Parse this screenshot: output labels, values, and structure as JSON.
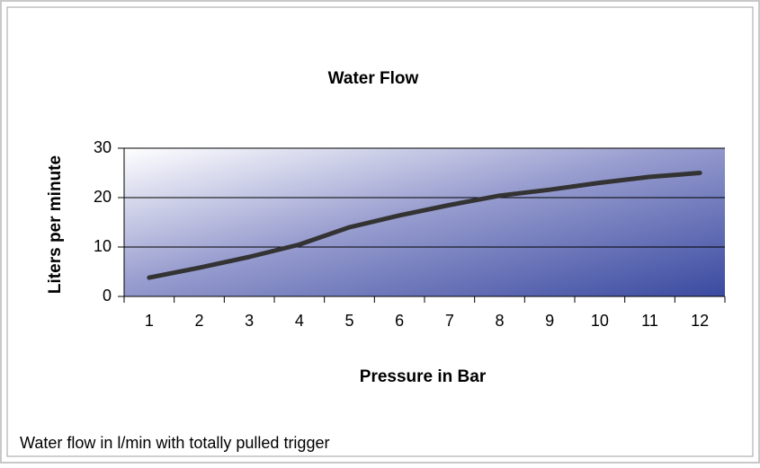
{
  "chart_data": {
    "type": "line",
    "title": "Water Flow",
    "x_label": "Pressure in Bar",
    "y_label": "Liters per minute",
    "categories": [
      1,
      2,
      3,
      4,
      5,
      6,
      7,
      8,
      9,
      10,
      11,
      12
    ],
    "series": [
      {
        "name": null,
        "color": "#333333",
        "values": [
          3.8,
          5.8,
          8,
          10.5,
          14,
          16.4,
          18.5,
          20.4,
          21.6,
          23,
          24.2,
          25
        ]
      }
    ],
    "ylim": [
      0,
      30
    ],
    "yticks": [
      0,
      10,
      20,
      30
    ],
    "grid": true
  },
  "caption": "Water flow in l/min with totally pulled trigger"
}
